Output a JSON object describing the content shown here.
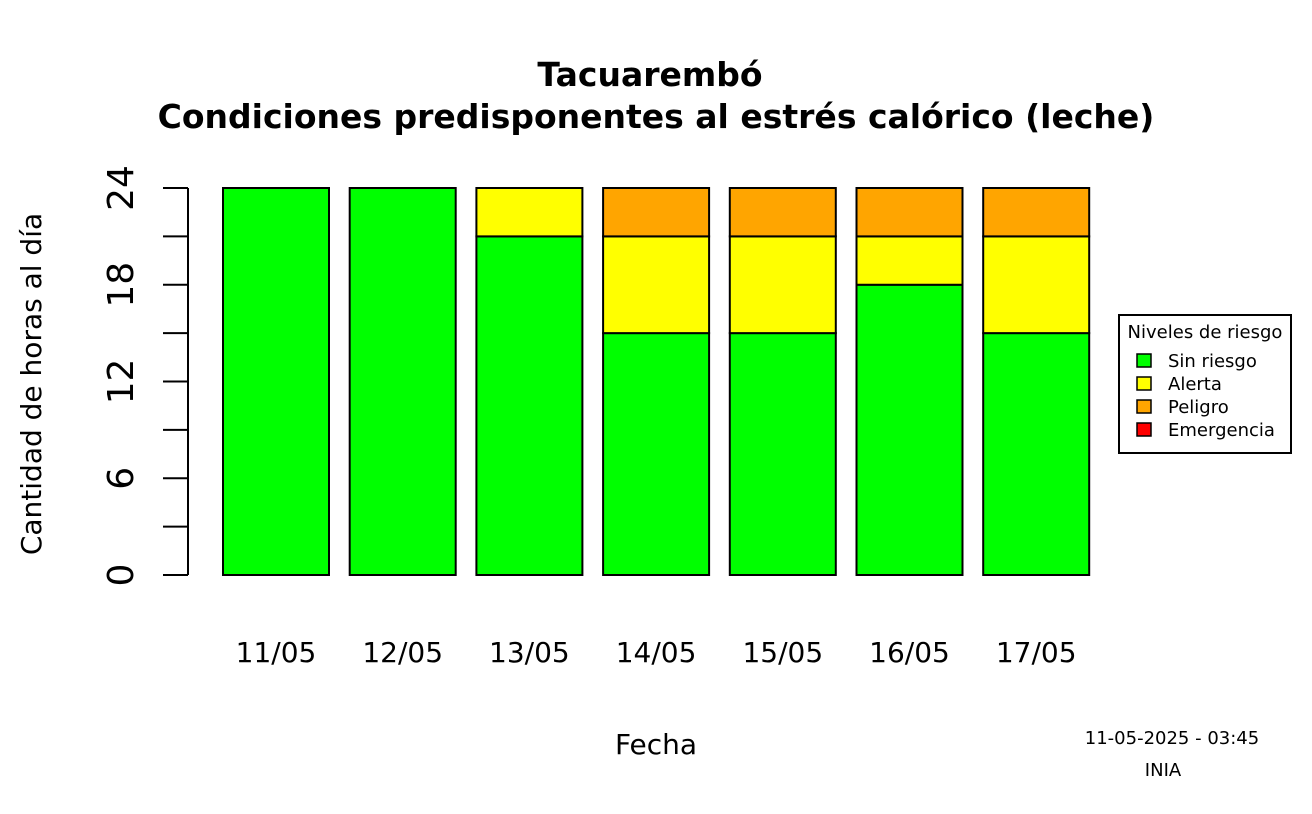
{
  "chart_data": {
    "type": "bar",
    "stacked": true,
    "title": "Tacuarembó",
    "subtitle": "Condiciones predisponentes al estrés calórico (leche)",
    "xlabel": "Fecha",
    "ylabel": "Cantidad de horas al día",
    "ylim": [
      0,
      24
    ],
    "y_ticks": [
      0,
      6,
      12,
      18,
      24
    ],
    "categories": [
      "11/05",
      "12/05",
      "13/05",
      "14/05",
      "15/05",
      "16/05",
      "17/05"
    ],
    "series": [
      {
        "name": "Sin riesgo",
        "color": "#00ff00",
        "values": [
          24,
          24,
          21,
          15,
          15,
          18,
          15
        ]
      },
      {
        "name": "Alerta",
        "color": "#ffff00",
        "values": [
          0,
          0,
          3,
          6,
          6,
          3,
          6
        ]
      },
      {
        "name": "Peligro",
        "color": "#ffa500",
        "values": [
          0,
          0,
          0,
          3,
          3,
          3,
          3
        ]
      },
      {
        "name": "Emergencia",
        "color": "#ff0000",
        "values": [
          0,
          0,
          0,
          0,
          0,
          0,
          0
        ]
      }
    ],
    "legend": {
      "title": "Niveles de riesgo",
      "position": "right"
    },
    "grid": false
  },
  "footer": {
    "timestamp": "11-05-2025 - 03:45",
    "source": "INIA"
  }
}
